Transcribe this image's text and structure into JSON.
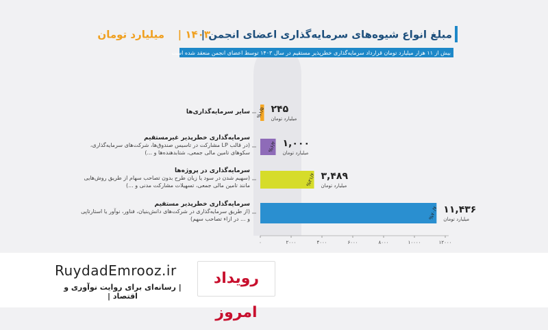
{
  "chart_data": {
    "type": "bar",
    "orientation": "horizontal",
    "title": "مبلغ انواع شیوه‌های سرمایه‌گذاری اعضای انجمن |",
    "title_year": "۱۴۰۳ |",
    "title_unit": "میلیارد تومان",
    "subtitle": "بیش از ۱۱ هزار میلیارد تومان قرارداد سرمایه‌گذاری خطرپذیر مستقیم در سال ۱۴۰۳ توسط اعضای انجمن منعقد شده است",
    "categories": [
      "سایر سرمایه‌گذاری‌ها",
      "سرمایه‌گذاری خطرپذیر غیرمستقیم",
      "سرمایه‌گذاری در پروژه‌ها",
      "سرمایه‌گذاری خطرپذیر مستقیم"
    ],
    "descriptions": [
      null,
      "(در قالب LP مشارکت در تاسیس صندوق‌ها، شرکت‌های سرمایه‌گذاری، سکوهای تامین مالی جمعی، شتابدهنده‌ها و ...)",
      "(سهیم شدن در سود یا زیان طرح بدون تصاحب سهام از طریق روش‌هایی مانند تامین مالی جمعی، تسهیلات مشارکت مدنی و ...)",
      "(از طریق سرمایه‌گذاری در شرکت‌های دانش‌بنیان، فناور، نوآور یا استارتاپی و ... در ازاء تصاحب سهم)"
    ],
    "values": [
      245,
      1000,
      3489,
      11436
    ],
    "value_labels": [
      "۲۴۵",
      "۱,۰۰۰",
      "۳,۴۸۹",
      "۱۱,۴۳۶"
    ],
    "unit_label": "میلیارد تومان",
    "shares": [
      1.5,
      6.2,
      21.6,
      70.7
    ],
    "share_labels": [
      "%۱/۵",
      "%۶/۲",
      "%۲۱/۶",
      "%۷۰/۷"
    ],
    "colors": [
      "#f5a623",
      "#8e6bb8",
      "#d6dc2a",
      "#2a8fd0"
    ],
    "xlim": [
      0,
      12000
    ],
    "xticks": [
      {
        "value": 0,
        "label": "۰"
      },
      {
        "value": 2000,
        "label": "۲۰۰۰"
      },
      {
        "value": 4000,
        "label": "۴۰۰۰"
      },
      {
        "value": 6000,
        "label": "۶۰۰۰"
      },
      {
        "value": 8000,
        "label": "۸۰۰۰"
      },
      {
        "value": 10000,
        "label": "۱۰۰۰۰"
      },
      {
        "value": 12000,
        "label": "۱۲۰۰۰"
      }
    ]
  },
  "branding": {
    "site": "RuydadEmrooz.ir",
    "tagline": "| رسانه‌ای برای روایت نوآوری و اقتصاد |",
    "logo": "رویداد امروز"
  }
}
